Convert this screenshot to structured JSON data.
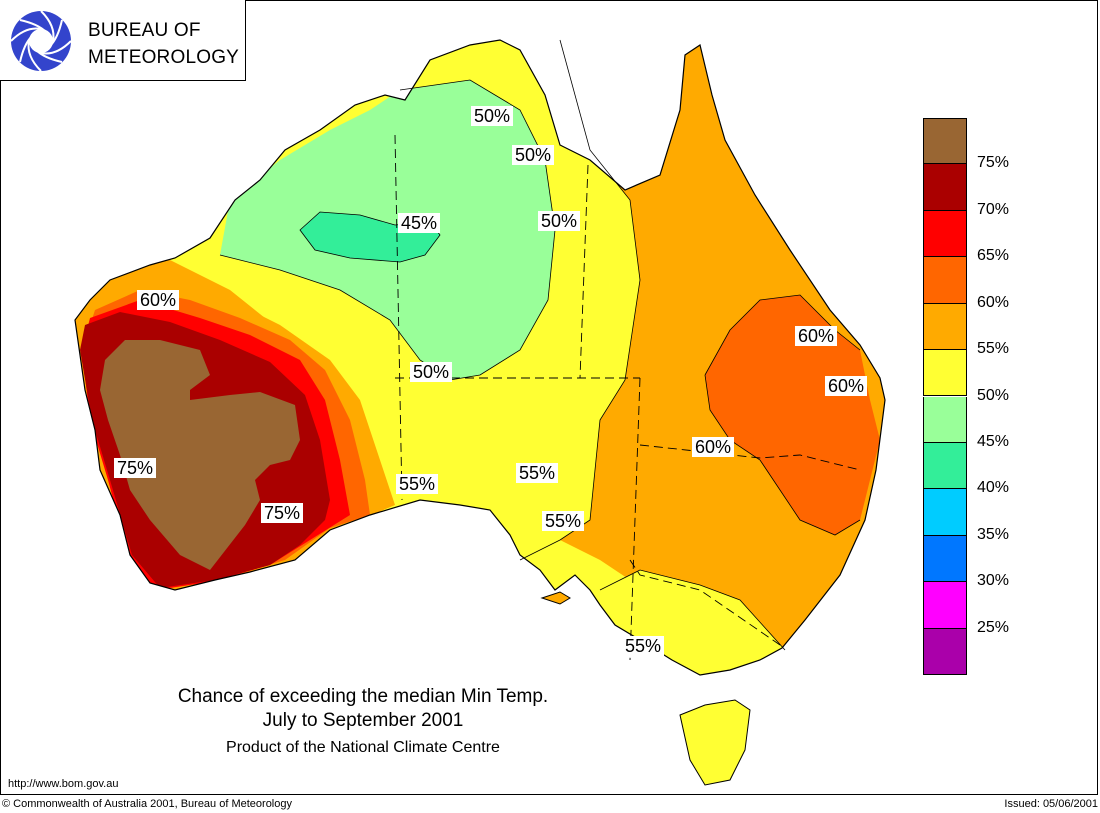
{
  "header": {
    "logo_line1": "BUREAU OF",
    "logo_line2": "METEOROLOGY"
  },
  "map": {
    "title_line1": "Chance of exceeding the median Min Temp.",
    "title_line2": "July to September 2001",
    "subtitle": "Product of the National Climate Centre",
    "contour_labels": [
      {
        "id": "nt-top-50",
        "text": "50%"
      },
      {
        "id": "gulf-50",
        "text": "50%"
      },
      {
        "id": "qld-west-50",
        "text": "50%"
      },
      {
        "id": "kimberley-45",
        "text": "45%"
      },
      {
        "id": "wa-coast-60",
        "text": "60%"
      },
      {
        "id": "central-50",
        "text": "50%"
      },
      {
        "id": "qld-60-north",
        "text": "60%"
      },
      {
        "id": "qld-60-coast",
        "text": "60%"
      },
      {
        "id": "nsw-qld-60",
        "text": "60%"
      },
      {
        "id": "wa-west-75",
        "text": "75%"
      },
      {
        "id": "wa-south-75",
        "text": "75%"
      },
      {
        "id": "nullarbor-55",
        "text": "55%"
      },
      {
        "id": "sa-55",
        "text": "55%"
      },
      {
        "id": "gulfs-55",
        "text": "55%"
      },
      {
        "id": "vic-55",
        "text": "55%"
      }
    ]
  },
  "legend": {
    "items": [
      {
        "label": "",
        "color": "#996633"
      },
      {
        "label": "75%",
        "color": "#aa0000"
      },
      {
        "label": "70%",
        "color": "#ff0000"
      },
      {
        "label": "65%",
        "color": "#ff6600"
      },
      {
        "label": "60%",
        "color": "#ffaa00"
      },
      {
        "label": "55%",
        "color": "#ffff33"
      },
      {
        "label": "50%",
        "color": "#99ff99"
      },
      {
        "label": "45%",
        "color": "#33ee99"
      },
      {
        "label": "40%",
        "color": "#00ccff"
      },
      {
        "label": "35%",
        "color": "#0077ff"
      },
      {
        "label": "30%",
        "color": "#ff00ff"
      },
      {
        "label": "25%",
        "color": "#aa00aa"
      }
    ]
  },
  "footer": {
    "url": "http://www.bom.gov.au",
    "copyright": "© Commonwealth of Australia 2001, Bureau of Meteorology",
    "issued": "Issued: 05/06/2001"
  }
}
